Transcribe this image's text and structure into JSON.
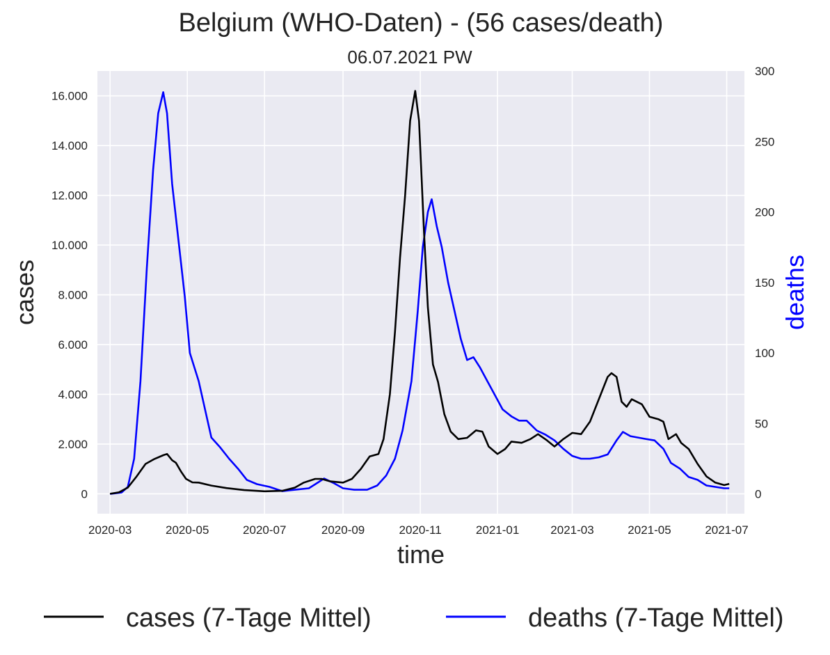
{
  "chart_data": {
    "type": "line",
    "title": "Belgium (WHO-Daten) - (56 cases/death)",
    "subtitle": "06.07.2021 PW",
    "xlabel": "time",
    "ylabel_left": "cases",
    "ylabel_right": "deaths",
    "x_ticks": [
      "2020-03",
      "2020-05",
      "2020-07",
      "2020-09",
      "2020-11",
      "2021-01",
      "2021-03",
      "2021-05",
      "2021-07"
    ],
    "y_ticks_left": [
      "0",
      "2.000",
      "4.000",
      "6.000",
      "8.000",
      "10.000",
      "12.000",
      "14.000",
      "16.000"
    ],
    "y_ticks_right": [
      "0",
      "50",
      "100",
      "150",
      "200",
      "250",
      "300"
    ],
    "ylim_left": [
      -800,
      17000
    ],
    "ylim_right": [
      -14,
      300
    ],
    "xlim": [
      "2020-02-20",
      "2021-07-15"
    ],
    "grid": true,
    "legend_position": "bottom",
    "series": [
      {
        "name": "cases (7-Tage Mittel)",
        "axis": "left",
        "color": "#000000",
        "points": [
          [
            "2020-03-01",
            0
          ],
          [
            "2020-03-08",
            60
          ],
          [
            "2020-03-15",
            250
          ],
          [
            "2020-03-22",
            700
          ],
          [
            "2020-03-29",
            1200
          ],
          [
            "2020-04-05",
            1400
          ],
          [
            "2020-04-12",
            1550
          ],
          [
            "2020-04-15",
            1600
          ],
          [
            "2020-04-19",
            1350
          ],
          [
            "2020-04-22",
            1250
          ],
          [
            "2020-04-26",
            900
          ],
          [
            "2020-04-30",
            600
          ],
          [
            "2020-05-05",
            460
          ],
          [
            "2020-05-10",
            450
          ],
          [
            "2020-05-20",
            330
          ],
          [
            "2020-06-01",
            230
          ],
          [
            "2020-06-15",
            150
          ],
          [
            "2020-07-01",
            100
          ],
          [
            "2020-07-15",
            120
          ],
          [
            "2020-07-25",
            250
          ],
          [
            "2020-08-01",
            450
          ],
          [
            "2020-08-10",
            600
          ],
          [
            "2020-08-15",
            600
          ],
          [
            "2020-08-22",
            500
          ],
          [
            "2020-09-01",
            450
          ],
          [
            "2020-09-08",
            600
          ],
          [
            "2020-09-15",
            1000
          ],
          [
            "2020-09-22",
            1500
          ],
          [
            "2020-09-29",
            1600
          ],
          [
            "2020-10-03",
            2200
          ],
          [
            "2020-10-08",
            4000
          ],
          [
            "2020-10-12",
            6500
          ],
          [
            "2020-10-16",
            9500
          ],
          [
            "2020-10-20",
            12000
          ],
          [
            "2020-10-24",
            15000
          ],
          [
            "2020-10-28",
            16200
          ],
          [
            "2020-10-31",
            15000
          ],
          [
            "2020-11-04",
            10500
          ],
          [
            "2020-11-07",
            7500
          ],
          [
            "2020-11-11",
            5200
          ],
          [
            "2020-11-15",
            4500
          ],
          [
            "2020-11-20",
            3200
          ],
          [
            "2020-11-25",
            2500
          ],
          [
            "2020-12-01",
            2200
          ],
          [
            "2020-12-08",
            2250
          ],
          [
            "2020-12-15",
            2550
          ],
          [
            "2020-12-20",
            2500
          ],
          [
            "2020-12-25",
            1900
          ],
          [
            "2021-01-01",
            1600
          ],
          [
            "2021-01-07",
            1800
          ],
          [
            "2021-01-12",
            2100
          ],
          [
            "2021-01-20",
            2050
          ],
          [
            "2021-01-27",
            2200
          ],
          [
            "2021-02-02",
            2400
          ],
          [
            "2021-02-09",
            2150
          ],
          [
            "2021-02-15",
            1900
          ],
          [
            "2021-02-22",
            2200
          ],
          [
            "2021-03-01",
            2450
          ],
          [
            "2021-03-08",
            2400
          ],
          [
            "2021-03-15",
            2900
          ],
          [
            "2021-03-22",
            3800
          ],
          [
            "2021-03-29",
            4700
          ],
          [
            "2021-04-01",
            4850
          ],
          [
            "2021-04-05",
            4700
          ],
          [
            "2021-04-09",
            3700
          ],
          [
            "2021-04-13",
            3500
          ],
          [
            "2021-04-17",
            3800
          ],
          [
            "2021-04-25",
            3600
          ],
          [
            "2021-05-01",
            3100
          ],
          [
            "2021-05-08",
            3000
          ],
          [
            "2021-05-12",
            2900
          ],
          [
            "2021-05-16",
            2200
          ],
          [
            "2021-05-22",
            2400
          ],
          [
            "2021-05-26",
            2050
          ],
          [
            "2021-06-01",
            1800
          ],
          [
            "2021-06-08",
            1200
          ],
          [
            "2021-06-15",
            700
          ],
          [
            "2021-06-22",
            450
          ],
          [
            "2021-06-29",
            350
          ],
          [
            "2021-07-03",
            400
          ]
        ]
      },
      {
        "name": "deaths (7-Tage Mittel)",
        "axis": "right",
        "color": "#0000ff",
        "points": [
          [
            "2020-03-01",
            0
          ],
          [
            "2020-03-10",
            1
          ],
          [
            "2020-03-15",
            5
          ],
          [
            "2020-03-20",
            25
          ],
          [
            "2020-03-25",
            80
          ],
          [
            "2020-03-30",
            160
          ],
          [
            "2020-04-04",
            230
          ],
          [
            "2020-04-08",
            270
          ],
          [
            "2020-04-12",
            285
          ],
          [
            "2020-04-15",
            270
          ],
          [
            "2020-04-19",
            220
          ],
          [
            "2020-04-24",
            180
          ],
          [
            "2020-04-29",
            140
          ],
          [
            "2020-05-03",
            100
          ],
          [
            "2020-05-10",
            80
          ],
          [
            "2020-05-15",
            60
          ],
          [
            "2020-05-20",
            40
          ],
          [
            "2020-05-27",
            33
          ],
          [
            "2020-06-03",
            25
          ],
          [
            "2020-06-10",
            18
          ],
          [
            "2020-06-17",
            10
          ],
          [
            "2020-06-25",
            7
          ],
          [
            "2020-07-05",
            5
          ],
          [
            "2020-07-15",
            2
          ],
          [
            "2020-07-25",
            3
          ],
          [
            "2020-08-05",
            4
          ],
          [
            "2020-08-12",
            8
          ],
          [
            "2020-08-17",
            11
          ],
          [
            "2020-08-24",
            8
          ],
          [
            "2020-09-01",
            4
          ],
          [
            "2020-09-10",
            3
          ],
          [
            "2020-09-20",
            3
          ],
          [
            "2020-09-28",
            6
          ],
          [
            "2020-10-05",
            13
          ],
          [
            "2020-10-12",
            25
          ],
          [
            "2020-10-18",
            45
          ],
          [
            "2020-10-25",
            80
          ],
          [
            "2020-10-30",
            130
          ],
          [
            "2020-11-03",
            175
          ],
          [
            "2020-11-07",
            200
          ],
          [
            "2020-11-10",
            209
          ],
          [
            "2020-11-14",
            190
          ],
          [
            "2020-11-18",
            175
          ],
          [
            "2020-11-23",
            150
          ],
          [
            "2020-11-28",
            130
          ],
          [
            "2020-12-03",
            110
          ],
          [
            "2020-12-08",
            95
          ],
          [
            "2020-12-13",
            97
          ],
          [
            "2020-12-18",
            90
          ],
          [
            "2020-12-24",
            80
          ],
          [
            "2020-12-30",
            70
          ],
          [
            "2021-01-05",
            60
          ],
          [
            "2021-01-12",
            55
          ],
          [
            "2021-01-18",
            52
          ],
          [
            "2021-01-24",
            52
          ],
          [
            "2021-02-01",
            45
          ],
          [
            "2021-02-08",
            42
          ],
          [
            "2021-02-15",
            38
          ],
          [
            "2021-02-22",
            32
          ],
          [
            "2021-03-01",
            27
          ],
          [
            "2021-03-08",
            25
          ],
          [
            "2021-03-15",
            25
          ],
          [
            "2021-03-22",
            26
          ],
          [
            "2021-03-29",
            28
          ],
          [
            "2021-04-05",
            38
          ],
          [
            "2021-04-10",
            44
          ],
          [
            "2021-04-16",
            41
          ],
          [
            "2021-04-22",
            40
          ],
          [
            "2021-04-28",
            39
          ],
          [
            "2021-05-05",
            38
          ],
          [
            "2021-05-12",
            32
          ],
          [
            "2021-05-18",
            22
          ],
          [
            "2021-05-25",
            18
          ],
          [
            "2021-06-01",
            12
          ],
          [
            "2021-06-08",
            10
          ],
          [
            "2021-06-15",
            6
          ],
          [
            "2021-06-22",
            5
          ],
          [
            "2021-06-29",
            4
          ],
          [
            "2021-07-03",
            4
          ]
        ]
      }
    ]
  }
}
